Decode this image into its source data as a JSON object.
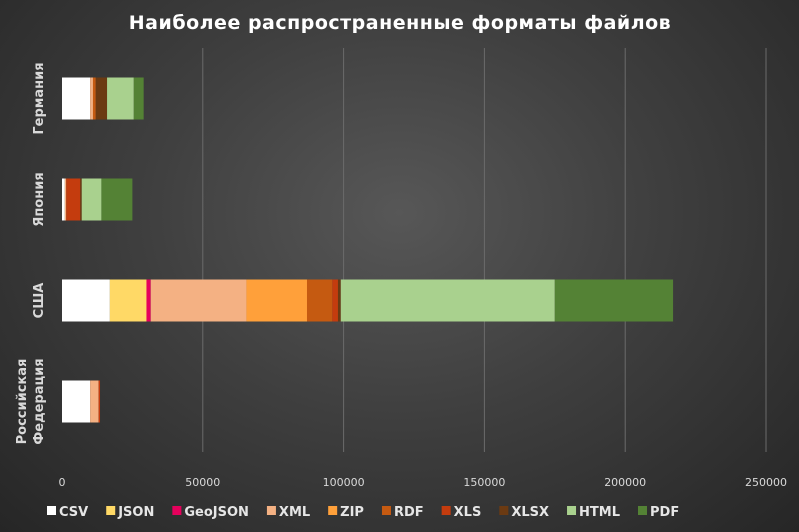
{
  "chart_data": {
    "type": "bar",
    "orientation": "horizontal",
    "stacked": true,
    "title": "Наиболее распространенные форматы файлов",
    "xlabel": "",
    "ylabel": "",
    "xlim": [
      0,
      250000
    ],
    "x_ticks": [
      "0",
      "50000",
      "100000",
      "150000",
      "200000",
      "250000"
    ],
    "x_tick_values": [
      0,
      50000,
      100000,
      150000,
      200000,
      250000
    ],
    "grid": true,
    "legend_position": "bottom",
    "categories": [
      "Германия",
      "Япония",
      "США",
      "Российская Федерация"
    ],
    "category_label_lines": [
      [
        "Германия"
      ],
      [
        "Япония"
      ],
      [
        "США"
      ],
      [
        "Российская",
        "Федерация"
      ]
    ],
    "series": [
      {
        "name": "CSV",
        "color": "#ffffff",
        "values": [
          10000,
          1000,
          17000,
          10000
        ]
      },
      {
        "name": "JSON",
        "color": "#ffd966",
        "values": [
          0,
          0,
          13000,
          0
        ]
      },
      {
        "name": "GeoJSON",
        "color": "#e6005c",
        "values": [
          0,
          0,
          1500,
          0
        ]
      },
      {
        "name": "XML",
        "color": "#f4b183",
        "values": [
          1000,
          500,
          34000,
          3000
        ]
      },
      {
        "name": "ZIP",
        "color": "#ffa03a",
        "values": [
          0,
          0,
          21500,
          0
        ]
      },
      {
        "name": "RDF",
        "color": "#c55a11",
        "values": [
          1000,
          0,
          9000,
          0
        ]
      },
      {
        "name": "XLS",
        "color": "#c43c0e",
        "values": [
          0,
          5000,
          2000,
          500
        ]
      },
      {
        "name": "XLSX",
        "color": "#6b3a12",
        "values": [
          4000,
          500,
          1000,
          0
        ]
      },
      {
        "name": "HTML",
        "color": "#a9d18e",
        "values": [
          9500,
          7000,
          76000,
          0
        ]
      },
      {
        "name": "PDF",
        "color": "#548235",
        "values": [
          3500,
          11000,
          42000,
          0
        ]
      }
    ]
  }
}
